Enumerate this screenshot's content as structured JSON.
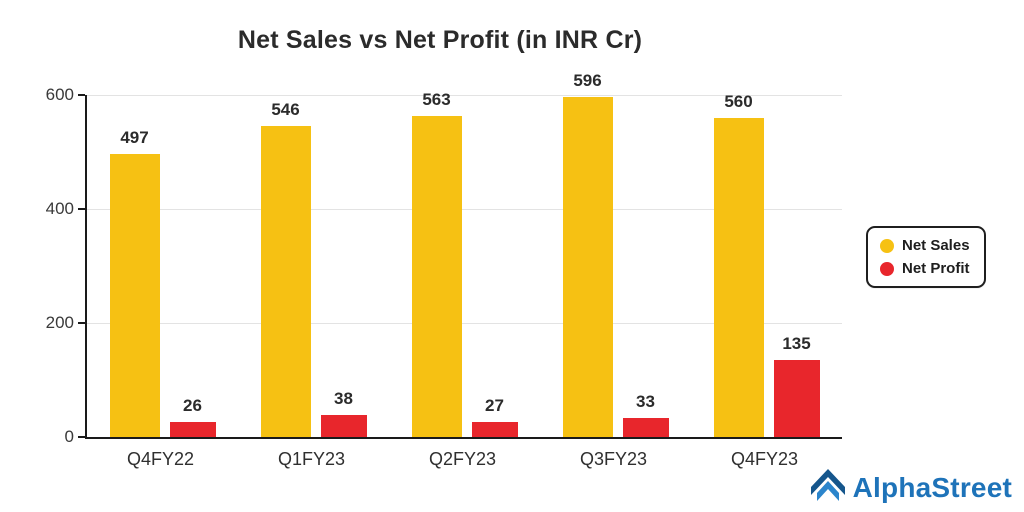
{
  "chart_data": {
    "type": "bar",
    "title": "Net Sales vs Net Profit (in INR Cr)",
    "categories": [
      "Q4FY22",
      "Q1FY23",
      "Q2FY23",
      "Q3FY23",
      "Q4FY23"
    ],
    "series": [
      {
        "name": "Net Sales",
        "color": "#F6C113",
        "values": [
          497,
          546,
          563,
          596,
          560
        ]
      },
      {
        "name": "Net Profit",
        "color": "#E8262C",
        "values": [
          26,
          38,
          27,
          33,
          135
        ]
      }
    ],
    "ylim": [
      0,
      600
    ],
    "yticks": [
      0,
      200,
      400,
      600
    ],
    "grid": true,
    "legend_position": "right"
  },
  "branding": {
    "logo_text": "AlphaStreet",
    "logo_color": "#1E73B9",
    "logo_dark": "#15568C",
    "logo_icon": "alphastreet-arrow-icon"
  }
}
